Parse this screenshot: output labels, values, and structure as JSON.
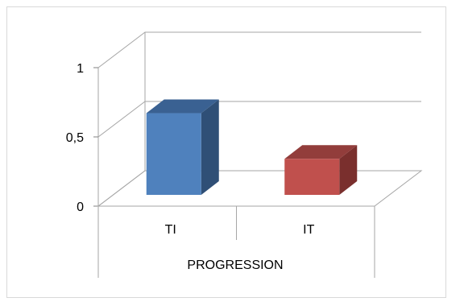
{
  "chart_data": {
    "type": "bar",
    "categories": [
      "TI",
      "IT"
    ],
    "values": [
      0.59,
      0.26
    ],
    "title": "",
    "xlabel": "PROGRESSION",
    "ylabel": "",
    "ylim": [
      0,
      1
    ],
    "yticks": [
      "0",
      "0,5",
      "1"
    ],
    "grid": true,
    "three_d": true,
    "legend": "none",
    "colors": {
      "bars": [
        "#4f81bd",
        "#c0504d"
      ],
      "bar_tops": [
        "#3a6192",
        "#923d3b"
      ],
      "bar_sides": [
        "#2f4f76",
        "#7a2f2d"
      ],
      "grid": "#a6a6a6",
      "axis": "#808080"
    }
  }
}
